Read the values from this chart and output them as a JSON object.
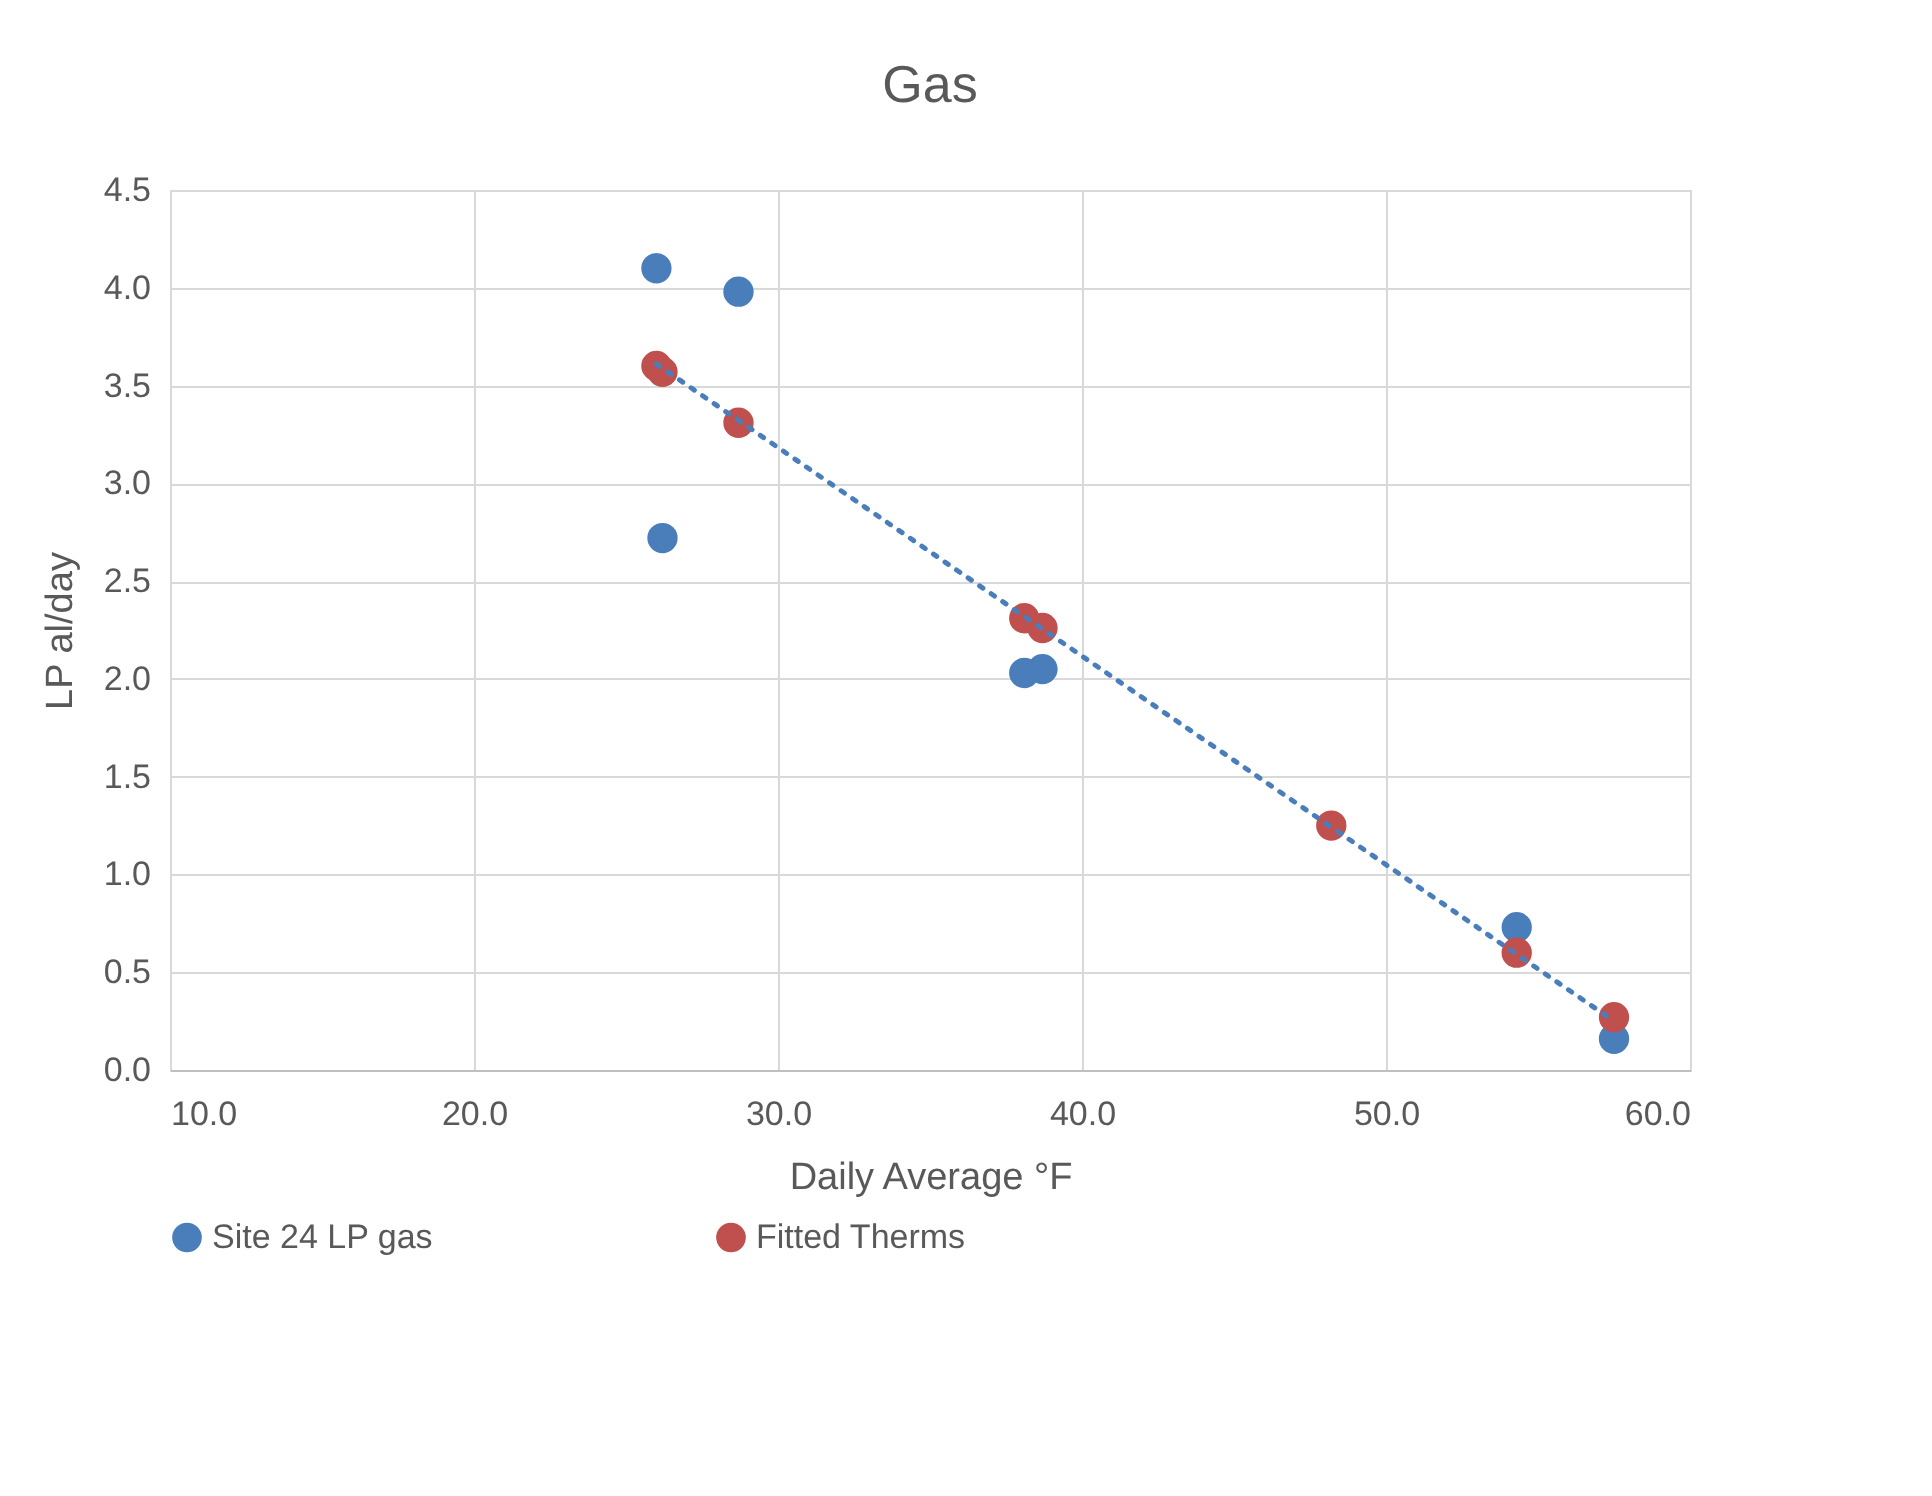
{
  "chart_data": {
    "type": "scatter",
    "title": "Gas",
    "xlabel": "Daily  Average °F",
    "ylabel": "LP al/day",
    "series": [
      {
        "name": "Site 24 LP gas",
        "color": "#4a7ebb",
        "x": [
          26.0,
          28.7,
          26.2,
          38.1,
          38.7,
          48.2,
          54.3,
          57.5
        ],
        "values": [
          4.1,
          3.98,
          2.72,
          2.03,
          2.05,
          null,
          0.73,
          0.16
        ]
      },
      {
        "name": "Fitted Therms",
        "color": "#c0504d",
        "x": [
          26.0,
          28.7,
          26.2,
          38.1,
          38.7,
          48.2,
          54.3,
          57.5
        ],
        "values": [
          3.6,
          3.31,
          3.57,
          2.31,
          2.26,
          1.25,
          0.6,
          0.27
        ]
      },
      {
        "type": "line",
        "color": "#4a7ebb",
        "line_style": "dotted",
        "marker": "none",
        "x": [
          26.0,
          57.5
        ],
        "values": [
          3.61,
          0.25
        ]
      }
    ],
    "marker": "circle",
    "legend": "bottom",
    "grid": true,
    "xlim": [
      10,
      60
    ],
    "ylim": [
      0,
      4.5
    ],
    "xticks": [
      {
        "value": 10,
        "label": "10.0"
      },
      {
        "value": 20,
        "label": "20.0"
      },
      {
        "value": 30,
        "label": "30.0"
      },
      {
        "value": 40,
        "label": "40.0"
      },
      {
        "value": 50,
        "label": "50.0"
      },
      {
        "value": 60,
        "label": "60.0"
      }
    ],
    "yticks": [
      {
        "value": 0,
        "label": "0.0"
      },
      {
        "value": 0.5,
        "label": "0.5"
      },
      {
        "value": 1,
        "label": "1.0"
      },
      {
        "value": 1.5,
        "label": "1.5"
      },
      {
        "value": 2,
        "label": "2.0"
      },
      {
        "value": 2.5,
        "label": "2.5"
      },
      {
        "value": 3,
        "label": "3.0"
      },
      {
        "value": 3.5,
        "label": "3.5"
      },
      {
        "value": 4,
        "label": "4.0"
      },
      {
        "value": 4.5,
        "label": "4.5"
      }
    ]
  }
}
